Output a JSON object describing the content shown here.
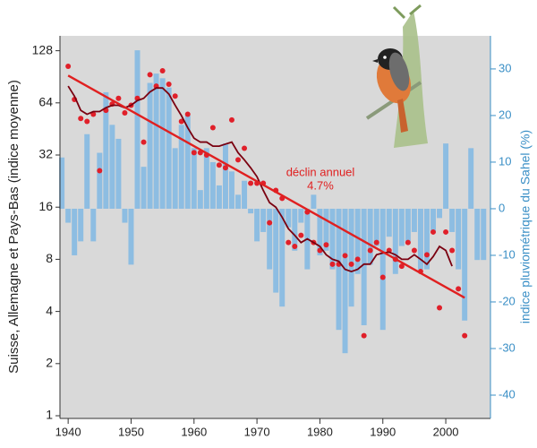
{
  "chart_data": {
    "type": "combo",
    "ylabel": "Suisse, Allemagne et Pays-Bas (indice moyenne)",
    "y2label": "indice pluviométrique du Sahel (%)",
    "annotation": [
      "déclin annuel",
      "4.7%"
    ],
    "xlim": [
      1938.7,
      2007.1
    ],
    "xticks": [
      1940,
      1950,
      1960,
      1970,
      1980,
      1990,
      2000
    ],
    "ylim": [
      0.965,
      156
    ],
    "yticks": [
      1,
      2,
      4,
      8,
      16,
      32,
      64,
      128
    ],
    "log_y": true,
    "y2lim": [
      -45,
      37.1
    ],
    "y2ticks": [
      -40,
      -30,
      -20,
      -10,
      0,
      10,
      20,
      30
    ],
    "background": "#d9d9d9",
    "series": [
      {
        "type": "bar",
        "axis": "y2",
        "color": "#8dbde2",
        "x": [
          1939,
          1940,
          1941,
          1942,
          1943,
          1944,
          1945,
          1946,
          1947,
          1948,
          1949,
          1950,
          1951,
          1952,
          1953,
          1954,
          1955,
          1956,
          1957,
          1958,
          1959,
          1960,
          1961,
          1962,
          1963,
          1964,
          1965,
          1966,
          1967,
          1968,
          1969,
          1970,
          1971,
          1972,
          1973,
          1974,
          1975,
          1976,
          1977,
          1978,
          1979,
          1980,
          1981,
          1982,
          1983,
          1984,
          1985,
          1986,
          1987,
          1988,
          1989,
          1990,
          1991,
          1992,
          1993,
          1994,
          1995,
          1996,
          1997,
          1998,
          1999,
          2000,
          2001,
          2002,
          2003,
          2004,
          2005,
          2006
        ],
        "values": [
          11,
          -3,
          -10,
          -7,
          16,
          -7,
          12,
          25,
          18,
          15,
          -3,
          -12,
          34,
          9,
          27,
          29,
          28,
          26,
          13,
          18,
          20,
          13,
          4,
          13,
          10,
          5,
          14,
          8,
          3,
          6,
          -1,
          -7,
          -5,
          -13,
          -18,
          -21,
          -4,
          -9,
          -3,
          -13,
          3,
          -10,
          -9,
          -13,
          -26,
          -31,
          -21,
          -14,
          -25,
          -12,
          -8,
          -26,
          -6,
          -14,
          -8,
          -7,
          -5,
          -13,
          -13,
          -5,
          -2,
          14,
          -5,
          -13,
          -24,
          13,
          -11,
          -11
        ]
      },
      {
        "type": "scatter",
        "color": "#e0202a",
        "x": [
          1940,
          1941,
          1942,
          1943,
          1944,
          1945,
          1946,
          1947,
          1948,
          1949,
          1950,
          1951,
          1952,
          1953,
          1954,
          1955,
          1956,
          1957,
          1958,
          1959,
          1960,
          1961,
          1962,
          1963,
          1964,
          1965,
          1966,
          1967,
          1968,
          1969,
          1970,
          1971,
          1972,
          1973,
          1974,
          1975,
          1976,
          1977,
          1978,
          1979,
          1980,
          1981,
          1982,
          1983,
          1984,
          1985,
          1986,
          1987,
          1988,
          1989,
          1990,
          1991,
          1992,
          1993,
          1994,
          1995,
          1996,
          1997,
          1998,
          1999,
          2000,
          2001,
          2002,
          2003
        ],
        "values": [
          104,
          67,
          52,
          50,
          55,
          26,
          58,
          63,
          68,
          56,
          62,
          68,
          38,
          93,
          80,
          98,
          82,
          70,
          50,
          55,
          33,
          33,
          32,
          46,
          28,
          27,
          51,
          30,
          35,
          22,
          22,
          22,
          13,
          20,
          18,
          10,
          9.5,
          11,
          15,
          10,
          9,
          9.7,
          7.5,
          7.5,
          8.4,
          7.5,
          8,
          2.9,
          9,
          10,
          6.3,
          9,
          8,
          7.3,
          10,
          9,
          6.8,
          8.5,
          11.5,
          4.2,
          11.5,
          9,
          5.4,
          2.9
        ]
      },
      {
        "type": "line",
        "color": "#7a0010",
        "x": [
          1940,
          1941,
          1942,
          1943,
          1944,
          1945,
          1946,
          1947,
          1948,
          1949,
          1950,
          1951,
          1952,
          1953,
          1954,
          1955,
          1956,
          1957,
          1958,
          1959,
          1960,
          1961,
          1962,
          1963,
          1964,
          1965,
          1966,
          1967,
          1968,
          1969,
          1970,
          1971,
          1972,
          1973,
          1974,
          1975,
          1976,
          1977,
          1978,
          1979,
          1980,
          1981,
          1982,
          1983,
          1984,
          1985,
          1986,
          1987,
          1988,
          1989,
          1990,
          1991,
          1992,
          1993,
          1994,
          1995,
          1996,
          1997,
          1998,
          1999,
          2000,
          2001
        ],
        "values": [
          80,
          70,
          58,
          55,
          57,
          57,
          60,
          62,
          62,
          60,
          62,
          66,
          68,
          74,
          78,
          78,
          72,
          62,
          54,
          46,
          40,
          38,
          38,
          36,
          36,
          37,
          38,
          33,
          30,
          27,
          24,
          20,
          17,
          16,
          14,
          12,
          11,
          10,
          10.5,
          10,
          9.5,
          8.5,
          8,
          7.8,
          7,
          6.8,
          7,
          7.5,
          7.5,
          8.5,
          8.7,
          8.8,
          8.5,
          8,
          8,
          8.5,
          8,
          7.5,
          8.3,
          9.5,
          9,
          7.3
        ]
      },
      {
        "type": "trend",
        "color": "#e02020",
        "x": [
          1940,
          2003
        ],
        "values": [
          92,
          4.8
        ]
      }
    ]
  }
}
